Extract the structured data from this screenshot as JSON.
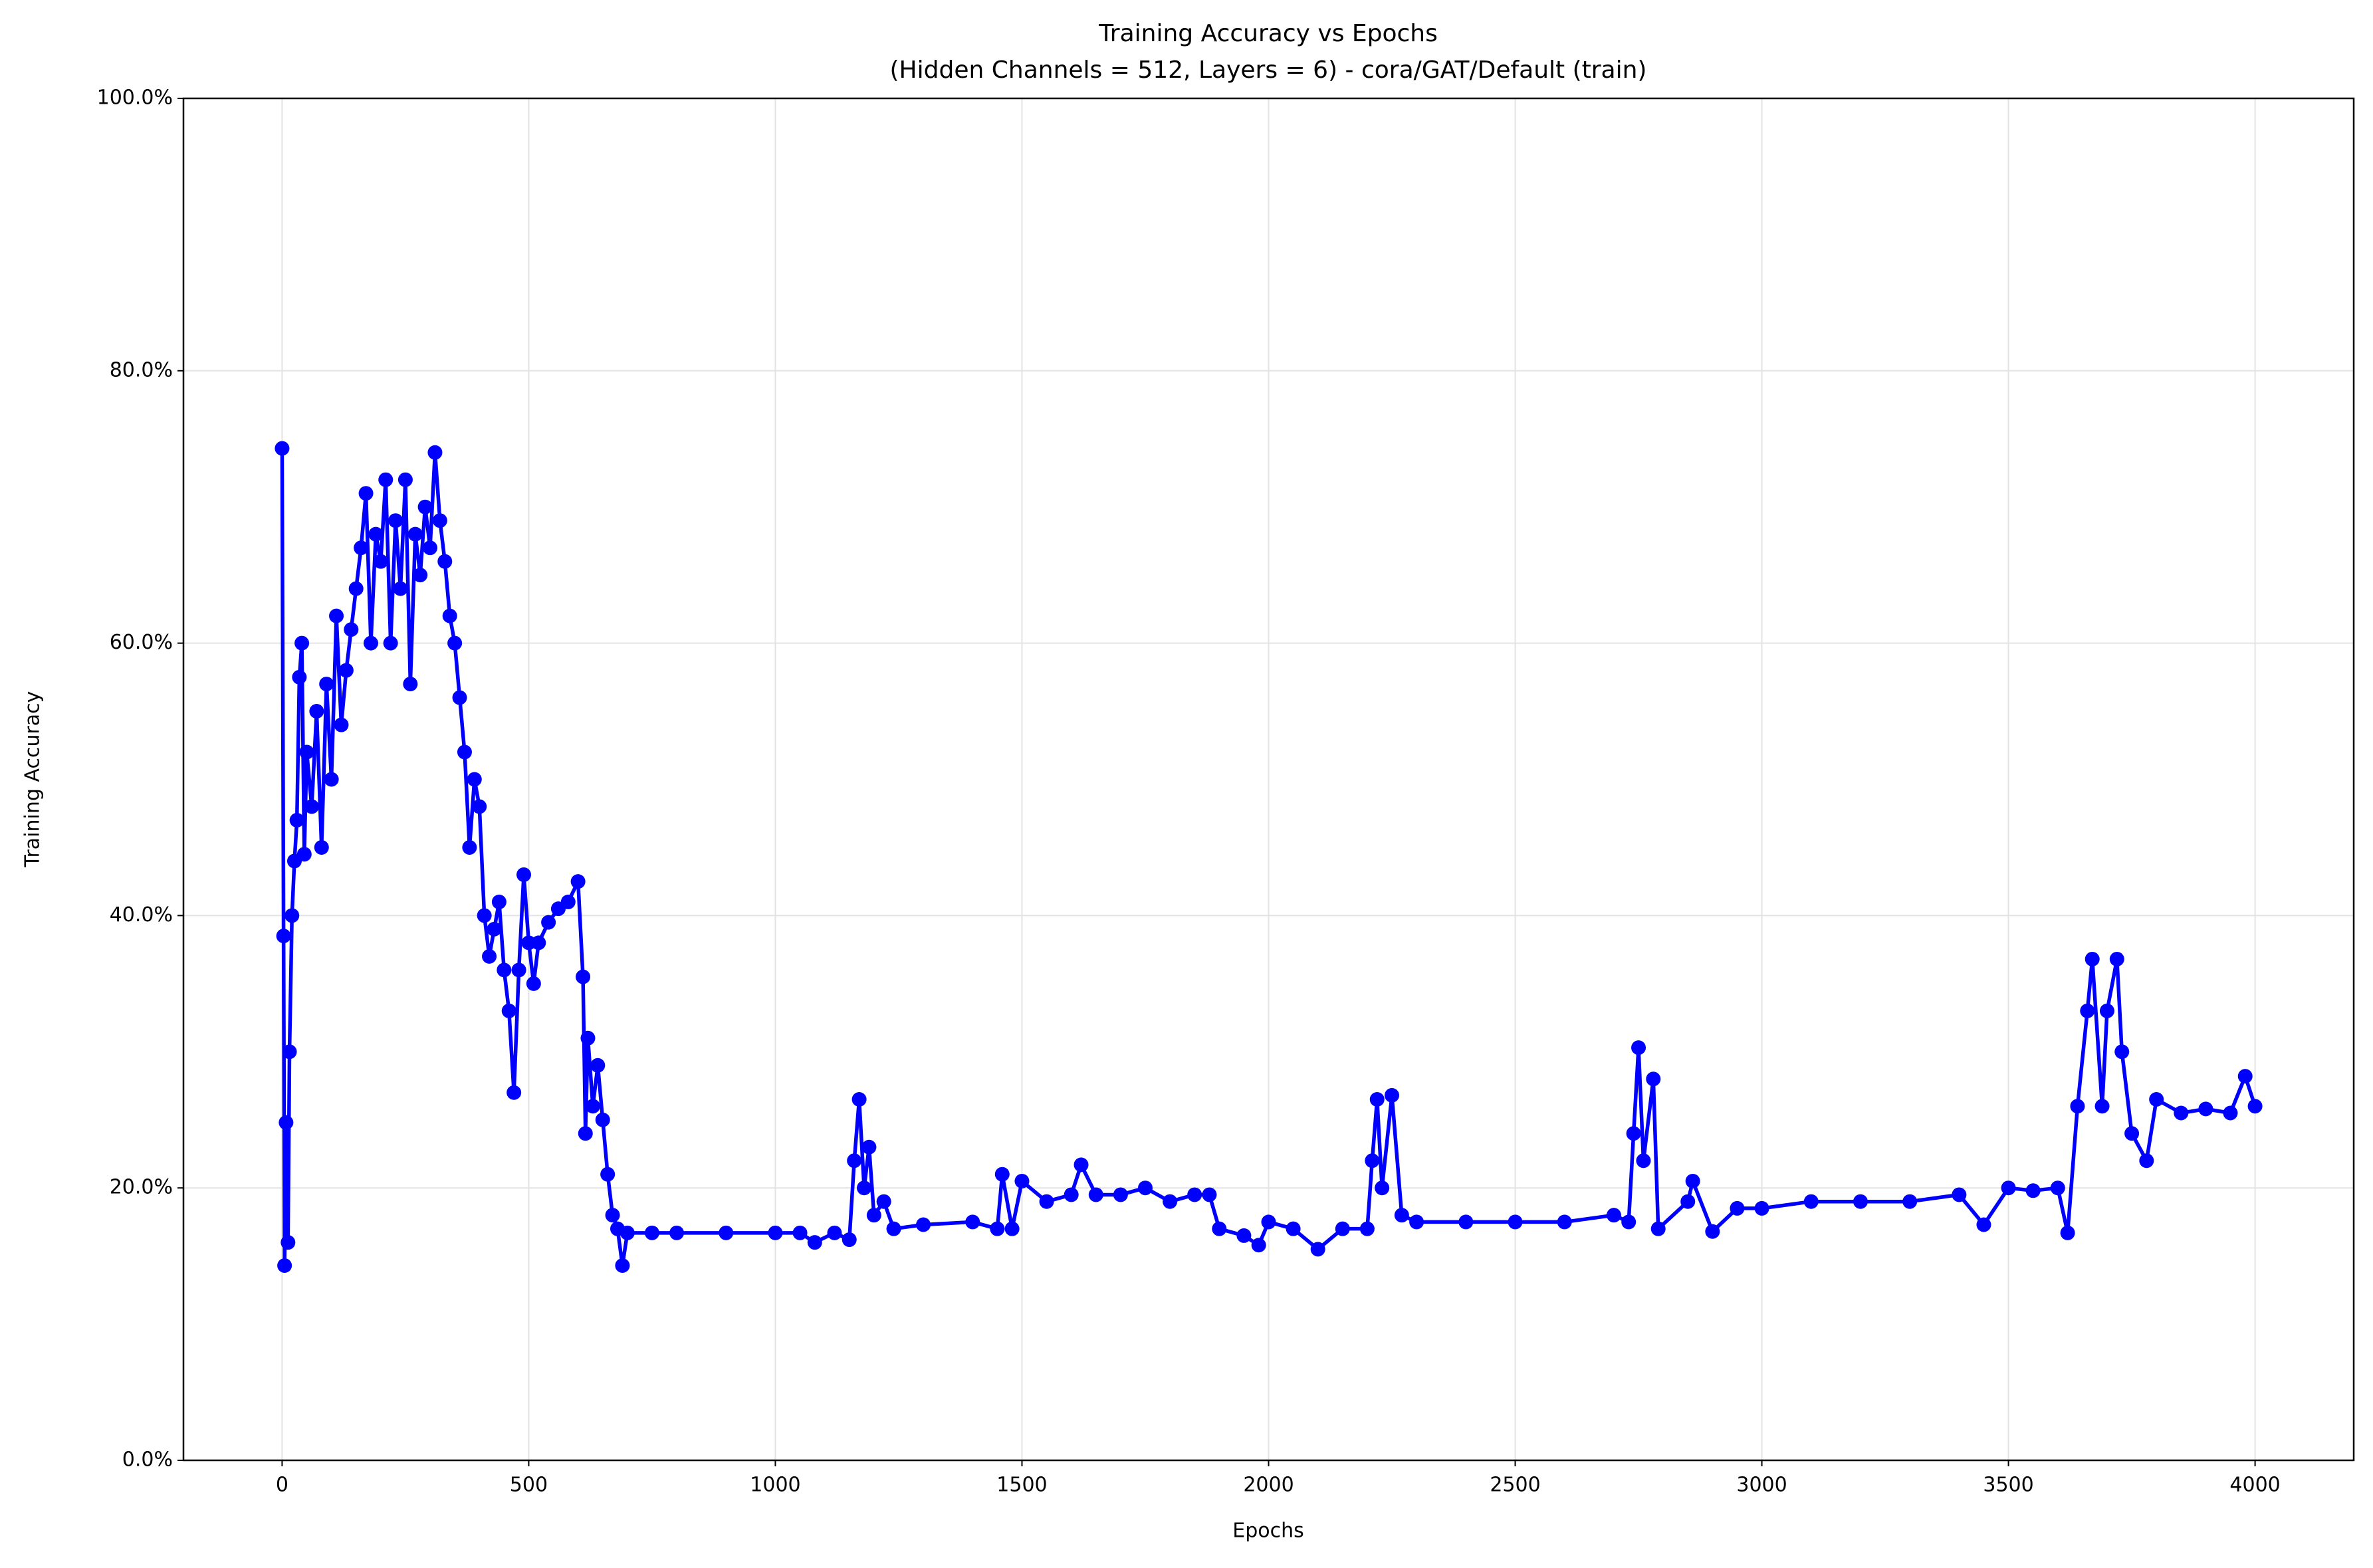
{
  "chart_data": {
    "type": "line",
    "title": "Training Accuracy vs Epochs",
    "subtitle": "(Hidden Channels = 512, Layers = 6) - cora/GAT/Default (train)",
    "xlabel": "Epochs",
    "ylabel": "Training Accuracy",
    "x": [
      0,
      3,
      5,
      8,
      12,
      15,
      20,
      25,
      30,
      35,
      40,
      45,
      50,
      60,
      70,
      80,
      90,
      100,
      110,
      120,
      130,
      140,
      150,
      160,
      170,
      180,
      190,
      200,
      210,
      220,
      230,
      240,
      250,
      260,
      270,
      280,
      290,
      300,
      310,
      320,
      330,
      340,
      350,
      360,
      370,
      380,
      390,
      400,
      410,
      420,
      430,
      440,
      450,
      460,
      470,
      480,
      490,
      500,
      510,
      520,
      540,
      560,
      580,
      600,
      610,
      615,
      620,
      630,
      640,
      650,
      660,
      670,
      680,
      690,
      700,
      750,
      800,
      900,
      1000,
      1050,
      1080,
      1120,
      1150,
      1160,
      1170,
      1180,
      1190,
      1200,
      1220,
      1240,
      1300,
      1400,
      1450,
      1460,
      1480,
      1500,
      1550,
      1600,
      1620,
      1650,
      1700,
      1750,
      1800,
      1850,
      1880,
      1900,
      1950,
      1980,
      2000,
      2050,
      2100,
      2150,
      2200,
      2210,
      2220,
      2230,
      2250,
      2270,
      2300,
      2400,
      2500,
      2600,
      2700,
      2730,
      2740,
      2750,
      2760,
      2780,
      2790,
      2850,
      2860,
      2900,
      2950,
      3000,
      3100,
      3200,
      3300,
      3400,
      3450,
      3500,
      3550,
      3600,
      3620,
      3640,
      3660,
      3670,
      3690,
      3700,
      3720,
      3730,
      3750,
      3780,
      3800,
      3850,
      3900,
      3950,
      3980,
      4000
    ],
    "series": [
      {
        "color": "#0000ff",
        "values": [
          74.3,
          38.5,
          14.3,
          24.8,
          16,
          30,
          40,
          44,
          47,
          57.5,
          60,
          44.5,
          52,
          48,
          55,
          45,
          57,
          50,
          62,
          54,
          58,
          61,
          64,
          67,
          71,
          60,
          68,
          66,
          72,
          60,
          69,
          64,
          72,
          57,
          68,
          65,
          70,
          67,
          74,
          69,
          66,
          62,
          60,
          56,
          52,
          45,
          50,
          48,
          40,
          37,
          39,
          41,
          36,
          33,
          27,
          36,
          43,
          38,
          35,
          38,
          39.5,
          40.5,
          41,
          42.5,
          35.5,
          24,
          31,
          26,
          29,
          25,
          21,
          18,
          17,
          14.3,
          16.7,
          16.7,
          16.7,
          16.7,
          16.7,
          16.7,
          16,
          16.7,
          16.2,
          22,
          26.5,
          20,
          23,
          18,
          19,
          17,
          17.3,
          17.5,
          17,
          21,
          17,
          20.5,
          19,
          19.5,
          21.7,
          19.5,
          19.5,
          20,
          19,
          19.5,
          19.5,
          17,
          16.5,
          15.8,
          17.5,
          17,
          15.5,
          17,
          17,
          22,
          26.5,
          20,
          26.8,
          18,
          17.5,
          17.5,
          17.5,
          17.5,
          18,
          17.5,
          24,
          30.3,
          22,
          28,
          17,
          19,
          20.5,
          16.8,
          18.5,
          18.5,
          19,
          19,
          19,
          19.5,
          17.3,
          20,
          19.8,
          20,
          16.7,
          26,
          33,
          36.8,
          26,
          33,
          36.8,
          30,
          24,
          22,
          26.5,
          25.5,
          25.8,
          25.5,
          28.2,
          26
        ]
      }
    ],
    "xlim": [
      -200,
      4200
    ],
    "ylim": [
      0,
      100
    ],
    "xticks": [
      0,
      500,
      1000,
      1500,
      2000,
      2500,
      3000,
      3500,
      4000
    ],
    "yticks": [
      {
        "value": 0,
        "label": "0.0%"
      },
      {
        "value": 20,
        "label": "20.0%"
      },
      {
        "value": 40,
        "label": "40.0%"
      },
      {
        "value": 60,
        "label": "60.0%"
      },
      {
        "value": 80,
        "label": "80.0%"
      },
      {
        "value": 100,
        "label": "100.0%"
      }
    ],
    "grid": true,
    "markers": true
  }
}
